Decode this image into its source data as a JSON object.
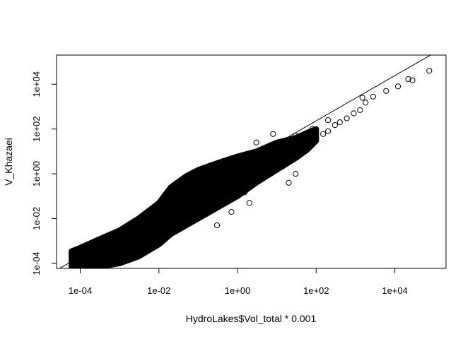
{
  "chart_data": {
    "type": "scatter",
    "title": "",
    "xlabel": "HydroLakes$Vol_total * 0.001",
    "ylabel": "V_Khazaei",
    "xscale": "log10",
    "yscale": "log10",
    "xlim": [
      2.5e-05,
      200000
    ],
    "ylim": [
      6e-05,
      200000
    ],
    "x_ticks": [
      0.0001,
      0.01,
      1,
      100,
      10000
    ],
    "x_tick_labels": [
      "1e-04",
      "1e-02",
      "1e+00",
      "1e+02",
      "1e+04"
    ],
    "y_ticks": [
      0.0001,
      0.01,
      1,
      100,
      10000
    ],
    "y_tick_labels": [
      "1e-04",
      "1e-02",
      "1e+00",
      "1e+02",
      "1e+04"
    ],
    "grid": false,
    "legend": "none",
    "marker": "open-circle",
    "point_color": "#000000",
    "reference_line": {
      "x": [
        2.5e-05,
        200000
      ],
      "y": [
        5e-05,
        500000
      ]
    },
    "points": [
      {
        "x": 75000,
        "y": 40000
      },
      {
        "x": 28000,
        "y": 15000
      },
      {
        "x": 22000,
        "y": 17000
      },
      {
        "x": 12000,
        "y": 8000
      },
      {
        "x": 6000,
        "y": 5000
      },
      {
        "x": 2800,
        "y": 2800
      },
      {
        "x": 1500,
        "y": 2500
      },
      {
        "x": 1800,
        "y": 1500
      },
      {
        "x": 1300,
        "y": 700
      },
      {
        "x": 900,
        "y": 500
      },
      {
        "x": 600,
        "y": 300
      },
      {
        "x": 400,
        "y": 200
      },
      {
        "x": 300,
        "y": 150
      },
      {
        "x": 200,
        "y": 250
      },
      {
        "x": 200,
        "y": 80
      },
      {
        "x": 150,
        "y": 60
      },
      {
        "x": 100,
        "y": 40
      },
      {
        "x": 80,
        "y": 100
      },
      {
        "x": 60,
        "y": 30
      },
      {
        "x": 40,
        "y": 20
      },
      {
        "x": 30,
        "y": 50
      },
      {
        "x": 25,
        "y": 12
      },
      {
        "x": 15,
        "y": 10
      },
      {
        "x": 10,
        "y": 3
      },
      {
        "x": 5,
        "y": 4
      },
      {
        "x": 3,
        "y": 25
      },
      {
        "x": 8,
        "y": 60
      },
      {
        "x": 1.5,
        "y": 0.15
      },
      {
        "x": 1.2,
        "y": 0.3
      },
      {
        "x": 3,
        "y": 0.4
      },
      {
        "x": 0.7,
        "y": 0.02
      },
      {
        "x": 2,
        "y": 0.05
      },
      {
        "x": 0.02,
        "y": 0.06
      },
      {
        "x": 0.01,
        "y": 0.025
      },
      {
        "x": 0.004,
        "y": 0.01
      },
      {
        "x": 0.3,
        "y": 0.005
      },
      {
        "x": 20,
        "y": 0.4
      },
      {
        "x": 30,
        "y": 1
      },
      {
        "x": 0.001,
        "y": 0.0015
      }
    ]
  }
}
